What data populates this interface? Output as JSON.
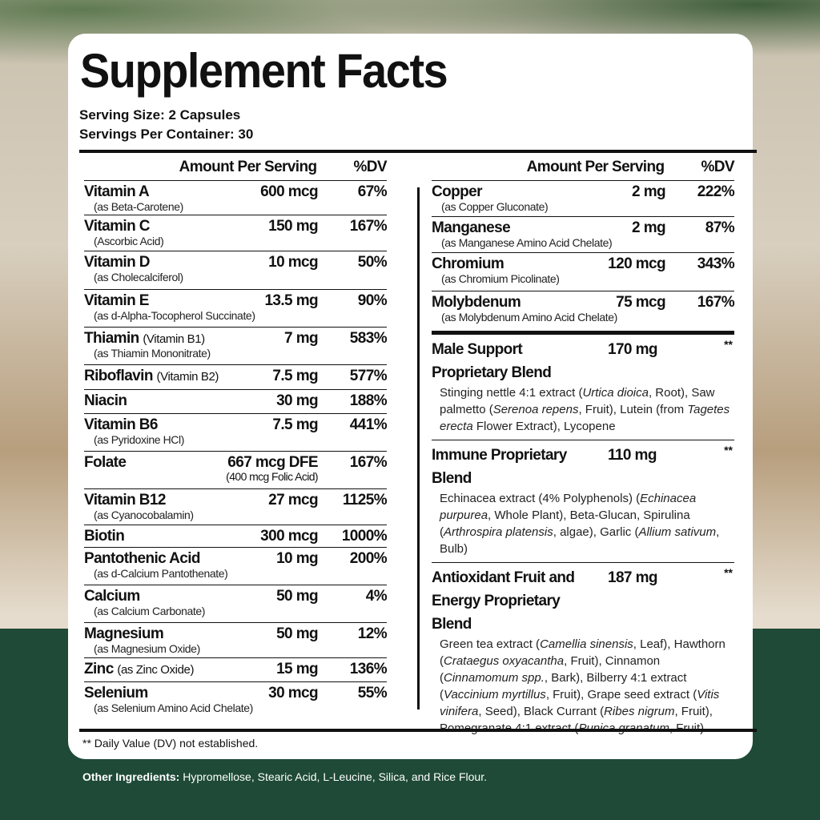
{
  "title": "Supplement Facts",
  "serving_size": "Serving Size: 2 Capsules",
  "servings_per_container": "Servings Per Container: 30",
  "header": {
    "amount": "Amount Per Serving",
    "dv": "%DV"
  },
  "left": [
    {
      "name": "Vitamin A",
      "source": "(as Beta-Carotene)",
      "amount": "600 mcg",
      "dv": "67%"
    },
    {
      "name": "Vitamin C",
      "source": "(Ascorbic Acid)",
      "amount": "150 mg",
      "dv": "167%"
    },
    {
      "name": "Vitamin D",
      "source": "(as Cholecalciferol)",
      "amount": "10 mcg",
      "dv": "50%"
    },
    {
      "name": "Vitamin E",
      "source": "(as d-Alpha-Tocopherol Succinate)",
      "amount": "13.5 mg",
      "dv": "90%"
    },
    {
      "name": "Thiamin",
      "paren": "(Vitamin B1)",
      "source": "(as Thiamin Mononitrate)",
      "amount": "7 mg",
      "dv": "583%"
    },
    {
      "name": "Riboflavin",
      "paren": "(Vitamin B2)",
      "amount": "7.5 mg",
      "dv": "577%"
    },
    {
      "name": "Niacin",
      "amount": "30 mg",
      "dv": "188%"
    },
    {
      "name": "Vitamin B6",
      "source": "(as Pyridoxine HCl)",
      "amount": "7.5 mg",
      "dv": "441%"
    },
    {
      "name": "Folate",
      "amount": "667 mcg DFE",
      "amount_sub": "(400 mcg Folic Acid)",
      "dv": "167%"
    },
    {
      "name": "Vitamin B12",
      "source": "(as Cyanocobalamin)",
      "amount": "27 mcg",
      "dv": "1125%"
    },
    {
      "name": "Biotin",
      "amount": "300 mcg",
      "dv": "1000%"
    },
    {
      "name": "Pantothenic Acid",
      "source": "(as d-Calcium Pantothenate)",
      "amount": "10 mg",
      "dv": "200%"
    },
    {
      "name": "Calcium",
      "source": "(as Calcium Carbonate)",
      "amount": "50 mg",
      "dv": "4%"
    },
    {
      "name": "Magnesium",
      "source": "(as Magnesium Oxide)",
      "amount": "50 mg",
      "dv": "12%"
    },
    {
      "name": "Zinc",
      "paren": "(as Zinc Oxide)",
      "amount": "15 mg",
      "dv": "136%"
    },
    {
      "name": "Selenium",
      "source": "(as Selenium Amino Acid Chelate)",
      "amount": "30 mcg",
      "dv": "55%"
    }
  ],
  "right": [
    {
      "name": "Copper",
      "source": "(as Copper Gluconate)",
      "amount": "2 mg",
      "dv": "222%"
    },
    {
      "name": "Manganese",
      "source": "(as Manganese Amino Acid Chelate)",
      "amount": "2 mg",
      "dv": "87%"
    },
    {
      "name": "Chromium",
      "source": "(as Chromium Picolinate)",
      "amount": "120 mcg",
      "dv": "343%"
    },
    {
      "name": "Molybdenum",
      "source": "(as Molybdenum Amino Acid Chelate)",
      "amount": "75 mcg",
      "dv": "167%"
    }
  ],
  "blends": [
    {
      "name": "Male Support Proprietary Blend",
      "amount": "170 mg",
      "dv": "**",
      "desc": [
        {
          "t": "Stinging nettle 4:1 extract ("
        },
        {
          "t": "Urtica dioica",
          "i": true
        },
        {
          "t": ", Root), Saw palmetto ("
        },
        {
          "t": "Serenoa repens",
          "i": true
        },
        {
          "t": ", Fruit), Lutein (from "
        },
        {
          "t": "Tagetes erecta",
          "i": true
        },
        {
          "t": " Flower Extract), Lycopene"
        }
      ]
    },
    {
      "name": "Immune Proprietary Blend",
      "amount": "110 mg",
      "dv": "**",
      "desc": [
        {
          "t": "Echinacea extract (4% Polyphenols) ("
        },
        {
          "t": "Echinacea purpurea",
          "i": true
        },
        {
          "t": ", Whole Plant), Beta-Glucan, Spirulina ("
        },
        {
          "t": "Arthrospira platensis",
          "i": true
        },
        {
          "t": ", algae), Garlic ("
        },
        {
          "t": "Allium sativum",
          "i": true
        },
        {
          "t": ", Bulb)"
        }
      ]
    },
    {
      "name": "Antioxidant Fruit and Energy Proprietary Blend",
      "amount": "187 mg",
      "dv": "**",
      "desc": [
        {
          "t": "Green tea extract ("
        },
        {
          "t": "Camellia sinensis",
          "i": true
        },
        {
          "t": ", Leaf), Hawthorn ("
        },
        {
          "t": "Crataegus oxyacantha",
          "i": true
        },
        {
          "t": ", Fruit), Cinnamon ("
        },
        {
          "t": "Cinnamomum spp.",
          "i": true
        },
        {
          "t": ", Bark), Bilberry 4:1 extract ("
        },
        {
          "t": "Vaccinium myrtillus",
          "i": true
        },
        {
          "t": ", Fruit), Grape seed extract ("
        },
        {
          "t": "Vitis vinifera",
          "i": true
        },
        {
          "t": ", Seed), Black Currant ("
        },
        {
          "t": "Ribes nigrum",
          "i": true
        },
        {
          "t": ", Fruit), Pomegranate 4:1 extract ("
        },
        {
          "t": "Punica granatum",
          "i": true
        },
        {
          "t": ", Fruit)"
        }
      ]
    }
  ],
  "footnote": "** Daily Value (DV) not established.",
  "other_ingredients": {
    "label": "Other Ingredients:",
    "text": " Hypromellose, Stearic Acid, L-Leucine, Silica, and Rice Flour."
  },
  "colors": {
    "band": "#1e4a37",
    "card": "#ffffff",
    "text": "#111111"
  }
}
